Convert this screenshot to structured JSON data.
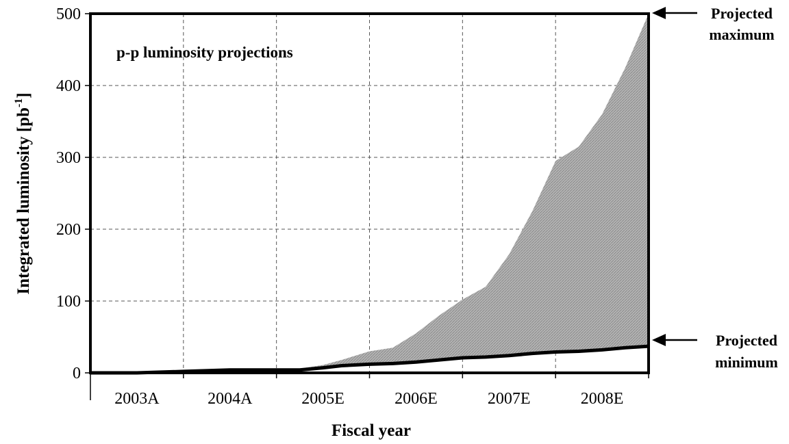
{
  "chart_data": {
    "type": "area",
    "title": "p-p luminosity projections",
    "xlabel": "Fiscal year",
    "ylabel": "Integrated luminosity [pb",
    "ylabel_sup": "-1",
    "ylabel_end": "]",
    "categories": [
      "2003A",
      "2004A",
      "2005E",
      "2006E",
      "2007E",
      "2008E"
    ],
    "xlim": [
      0,
      6
    ],
    "ylim": [
      0,
      500
    ],
    "yticks": [
      0,
      100,
      200,
      300,
      400,
      500
    ],
    "grid": true,
    "grid_style": "dashed",
    "fill_color": "#a8a8a8",
    "line_color": "#000000",
    "series": [
      {
        "name": "Projected maximum",
        "x": [
          0,
          0.5,
          1.0,
          1.5,
          2.0,
          2.25,
          2.5,
          2.7,
          3.0,
          3.25,
          3.5,
          3.75,
          4.0,
          4.25,
          4.5,
          4.75,
          5.0,
          5.25,
          5.5,
          5.75,
          6.0
        ],
        "values": [
          0,
          0,
          2,
          5,
          5,
          6,
          11,
          18,
          30,
          35,
          55,
          80,
          102,
          120,
          165,
          225,
          295,
          315,
          360,
          425,
          500
        ]
      },
      {
        "name": "Projected minimum",
        "x": [
          0,
          0.5,
          1.0,
          1.5,
          2.0,
          2.25,
          2.5,
          2.7,
          3.0,
          3.25,
          3.5,
          3.75,
          4.0,
          4.25,
          4.5,
          4.75,
          5.0,
          5.25,
          5.5,
          5.75,
          6.0
        ],
        "values": [
          0,
          0,
          2,
          4,
          4,
          4,
          7,
          10,
          12,
          13,
          15,
          18,
          21,
          22,
          24,
          27,
          29,
          30,
          32,
          35,
          37
        ]
      }
    ]
  },
  "annotations": {
    "max_label_line1": "Projected",
    "max_label_line2": "maximum",
    "min_label_line1": "Projected",
    "min_label_line2": "minimum"
  }
}
